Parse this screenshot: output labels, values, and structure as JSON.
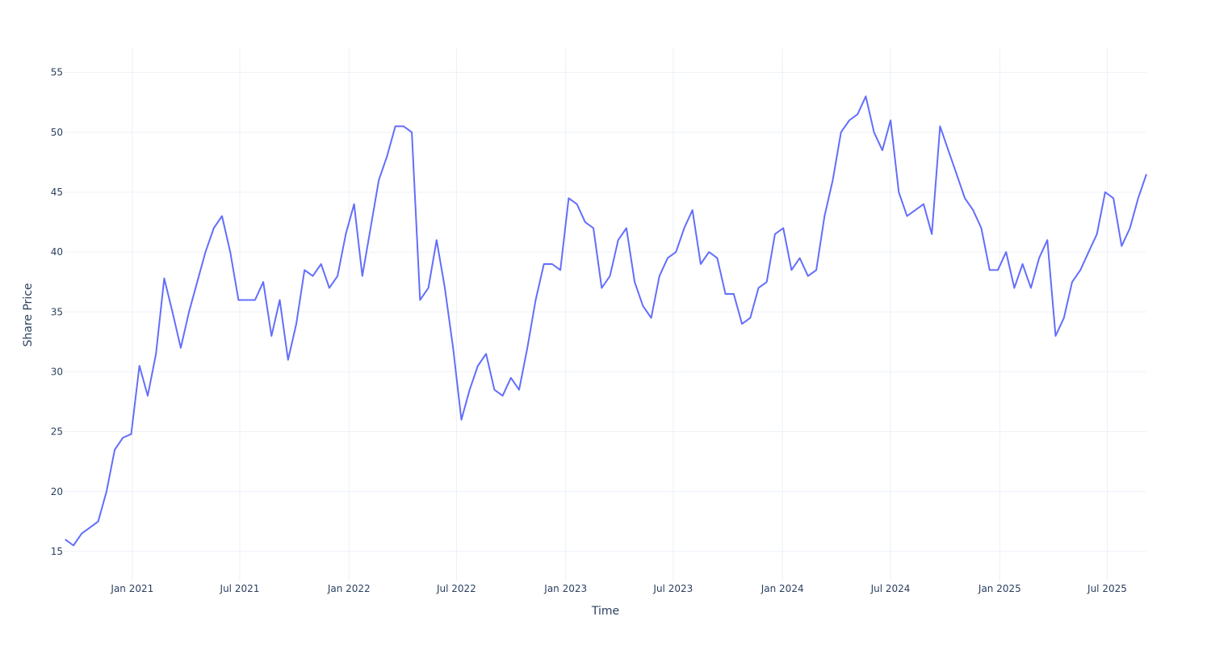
{
  "chart_data": {
    "type": "line",
    "title": "",
    "xlabel": "Time",
    "ylabel": "Share Price",
    "xrange": [
      "2020-09-09",
      "2025-09-05"
    ],
    "ylim": [
      12.5,
      57
    ],
    "grid": true,
    "line_color": "#636efa",
    "grid_color": "#ebf0f8",
    "text_color": "#2a3f5f",
    "x_ticks": [
      {
        "date": "2021-01-01",
        "label": "Jan 2021"
      },
      {
        "date": "2021-07-01",
        "label": "Jul 2021"
      },
      {
        "date": "2022-01-01",
        "label": "Jan 2022"
      },
      {
        "date": "2022-07-01",
        "label": "Jul 2022"
      },
      {
        "date": "2023-01-01",
        "label": "Jan 2023"
      },
      {
        "date": "2023-07-01",
        "label": "Jul 2023"
      },
      {
        "date": "2024-01-01",
        "label": "Jan 2024"
      },
      {
        "date": "2024-07-01",
        "label": "Jul 2024"
      },
      {
        "date": "2025-01-01",
        "label": "Jan 2025"
      },
      {
        "date": "2025-07-01",
        "label": "Jul 2025"
      }
    ],
    "y_ticks": [
      15,
      20,
      25,
      30,
      35,
      40,
      45,
      50,
      55
    ],
    "series": [
      {
        "name": "Share Price",
        "start": "2020-09-10",
        "end": "2025-09-05",
        "values": [
          16,
          15.5,
          16.5,
          17,
          17.5,
          20,
          23.5,
          24.5,
          24.8,
          30.5,
          28,
          31.5,
          37.8,
          35,
          32,
          35,
          37.5,
          40,
          42,
          43,
          40,
          36,
          36,
          36,
          37.5,
          33,
          36,
          31,
          34,
          38.5,
          38,
          39,
          37,
          38,
          41.5,
          44,
          38,
          42,
          46,
          48,
          50.5,
          50.5,
          50,
          36,
          37,
          41,
          37,
          32,
          26,
          28.5,
          30.5,
          31.5,
          28.5,
          28,
          29.5,
          28.5,
          32,
          36,
          39,
          39,
          38.5,
          44.5,
          44,
          42.5,
          42,
          37,
          38,
          41,
          42,
          37.5,
          35.5,
          34.5,
          38,
          39.5,
          40,
          42,
          43.5,
          39,
          40,
          39.5,
          36.5,
          36.5,
          34,
          34.5,
          37,
          37.5,
          41.5,
          42,
          38.5,
          39.5,
          38,
          38.5,
          43,
          46,
          50,
          51,
          51.5,
          53,
          50,
          48.5,
          51,
          45,
          43,
          43.5,
          44,
          41.5,
          50.5,
          48.5,
          46.5,
          44.5,
          43.5,
          42,
          38.5,
          38.5,
          40,
          37,
          39,
          37,
          39.5,
          41,
          33,
          34.5,
          37.5,
          38.5,
          40,
          41.5,
          45,
          44.5,
          40.5,
          42,
          44.5,
          46.5
        ]
      }
    ]
  }
}
